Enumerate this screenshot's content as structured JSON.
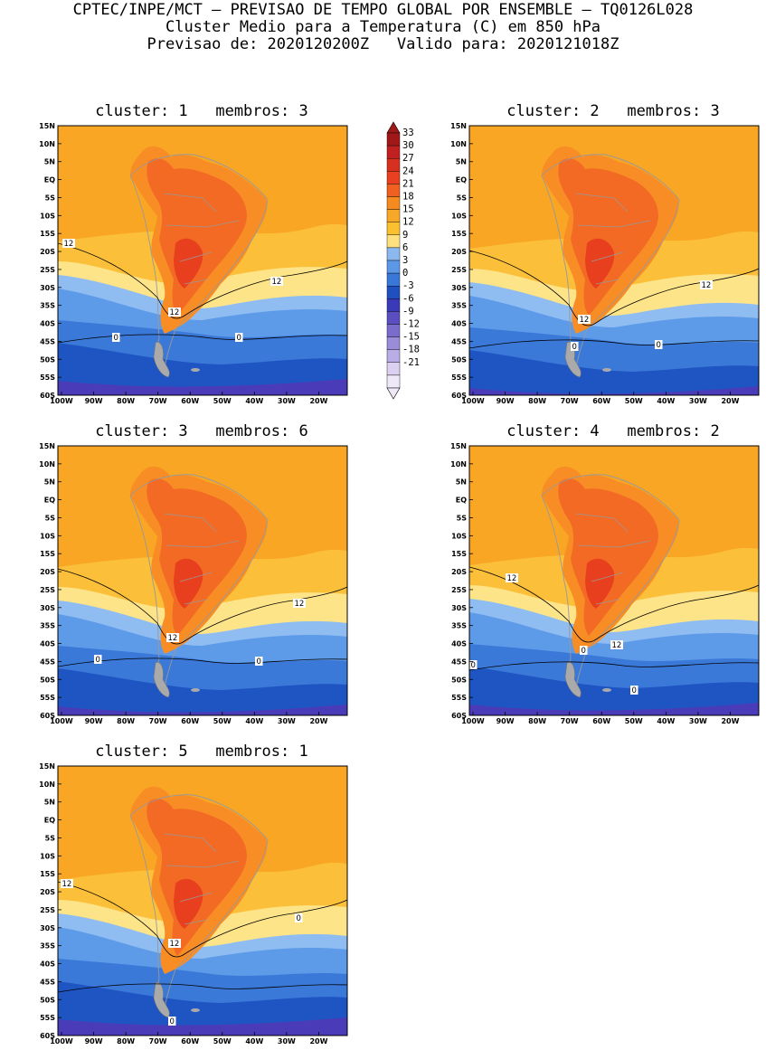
{
  "header": {
    "line1": "CPTEC/INPE/MCT – PREVISAO DE TEMPO GLOBAL POR ENSEMBLE – TQ0126L028",
    "line2": "Cluster Medio para a Temperatura (C) em 850 hPa",
    "line3": "Previsao de: 2020120200Z   Valido para: 2020121018Z"
  },
  "lat_labels": [
    "15N",
    "10N",
    "5N",
    "EQ",
    "5S",
    "10S",
    "15S",
    "20S",
    "25S",
    "30S",
    "35S",
    "40S",
    "45S",
    "50S",
    "55S",
    "60S"
  ],
  "lon_labels": [
    "100W",
    "90W",
    "80W",
    "70W",
    "60W",
    "50W",
    "40W",
    "30W",
    "20W"
  ],
  "panels": [
    {
      "title": "cluster: 1   membros: 3",
      "contours": [
        "12",
        "12",
        "12",
        "0",
        "0"
      ]
    },
    {
      "title": "cluster: 2   membros: 3",
      "contours": [
        "12",
        "12",
        "0",
        "0"
      ]
    },
    {
      "title": "cluster: 3   membros: 6",
      "contours": [
        "12",
        "12",
        "0",
        "0"
      ]
    },
    {
      "title": "cluster: 4   membros: 2",
      "contours": [
        "12",
        "12",
        "0",
        "0",
        "0"
      ]
    },
    {
      "title": "cluster: 5   membros: 1",
      "contours": [
        "12",
        "12",
        "0",
        "0"
      ]
    }
  ],
  "colorbar": {
    "labels": [
      "33",
      "30",
      "27",
      "24",
      "21",
      "18",
      "15",
      "12",
      "9",
      "6",
      "3",
      "0",
      "-3",
      "-6",
      "-9",
      "-12",
      "-15",
      "-18",
      "-21"
    ],
    "colors": [
      "#a01818",
      "#c02020",
      "#d83020",
      "#e84020",
      "#f06020",
      "#f58a20",
      "#f8a828",
      "#fbc030",
      "#fde080",
      "#8cb8f0",
      "#5c98e8",
      "#3a78d8",
      "#2050c0",
      "#3a3ab8",
      "#5a4ec0",
      "#7a6ccc",
      "#9a8cd8",
      "#baace4",
      "#dcd0f0",
      "#eee8f8"
    ]
  },
  "palette": {
    "ocean_warm": "#f9a624",
    "ocean_mid": "#fbbf3a",
    "pale": "#fde488",
    "lightblue": "#8fbdf2",
    "blue": "#5d9ae8",
    "midblue": "#3b79d9",
    "darkblue": "#1f55c2",
    "purple": "#4a3cb8",
    "land_hot": "#f36a24",
    "land_hotter": "#e8401e",
    "land_warm": "#f88d26"
  }
}
